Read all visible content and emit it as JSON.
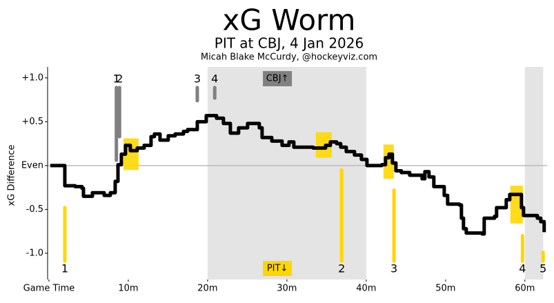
{
  "chart_data": {
    "type": "worm",
    "title": "xG Worm",
    "subtitle": "PIT at CBJ, 4 Jan 2026",
    "credit": "Micah Blake McCurdy, @hockeyviz.com",
    "y_label": "xG Difference",
    "xlim": [
      -0.17,
      62.8
    ],
    "ylim": [
      -1.3,
      1.125
    ],
    "xticks": [
      {
        "value": 0,
        "label": "Game Time"
      },
      {
        "value": 10,
        "label": "10m"
      },
      {
        "value": 20,
        "label": "20m"
      },
      {
        "value": 30,
        "label": "30m"
      },
      {
        "value": 40,
        "label": "40m"
      },
      {
        "value": 50,
        "label": "50m"
      },
      {
        "value": 60,
        "label": "60m"
      }
    ],
    "yticks": [
      {
        "value": 1,
        "label": "+1.0"
      },
      {
        "value": 0.5,
        "label": "+0.5"
      },
      {
        "value": 0,
        "label": "Even"
      },
      {
        "value": -0.5,
        "label": "-0.5"
      },
      {
        "value": -1,
        "label": "-1.0"
      }
    ],
    "step": true,
    "color": "#000000",
    "shaded_spans": [
      [
        20,
        40
      ],
      [
        60,
        62.3
      ]
    ],
    "x": [
      0.17,
      1.57,
      1.83,
      2.0,
      3.3,
      4.17,
      4.35,
      5.3,
      5.48,
      6.35,
      6.96,
      7.74,
      8.09,
      8.35,
      8.7,
      9.13,
      9.65,
      10.26,
      11.13,
      12.0,
      12.87,
      13.3,
      14.0,
      15.04,
      15.91,
      16.96,
      17.48,
      18.7,
      19.57,
      19.83,
      21.13,
      22.0,
      22.87,
      23.91,
      25.04,
      26.52,
      26.87,
      28.09,
      29.39,
      30.26,
      30.87,
      33.3,
      34.35,
      34.87,
      35.48,
      36.26,
      36.78,
      37.48,
      38.52,
      39.39,
      40.09,
      41.96,
      42.43,
      42.87,
      43.3,
      43.74,
      44.43,
      45.48,
      47.04,
      47.39,
      47.91,
      48.52,
      49.83,
      50.26,
      51.74,
      52.0,
      52.26,
      52.61,
      54.61,
      54.87,
      56.17,
      56.43,
      57.22,
      57.65,
      58.09,
      58.96,
      59.57,
      59.83,
      61.57,
      62.0,
      62.43
    ],
    "values": [
      0,
      0,
      0,
      -0.23,
      -0.24,
      -0.26,
      -0.35,
      -0.35,
      -0.31,
      -0.31,
      -0.34,
      -0.31,
      -0.31,
      -0.18,
      0.01,
      0.13,
      0.23,
      0.17,
      0.2,
      0.23,
      0.33,
      0.36,
      0.29,
      0.34,
      0.36,
      0.39,
      0.41,
      0.5,
      0.5,
      0.57,
      0.54,
      0.48,
      0.37,
      0.43,
      0.48,
      0.43,
      0.32,
      0.28,
      0.23,
      0.27,
      0.21,
      0.2,
      0.2,
      0.23,
      0.27,
      0.25,
      0.21,
      0.16,
      0.12,
      0.07,
      0,
      0.01,
      0.09,
      0.13,
      0.03,
      -0.06,
      -0.08,
      -0.11,
      -0.15,
      -0.07,
      -0.13,
      -0.24,
      -0.34,
      -0.44,
      -0.45,
      -0.6,
      -0.72,
      -0.77,
      -0.78,
      -0.6,
      -0.58,
      -0.48,
      -0.48,
      -0.39,
      -0.33,
      -0.33,
      -0.48,
      -0.57,
      -0.6,
      -0.64,
      -0.76
    ],
    "highlight_color": "#ffd700",
    "highlights": [
      {
        "x": [
          9.39,
          11.3
        ],
        "y": [
          -0.05,
          0.31
        ]
      },
      {
        "x": [
          33.65,
          35.65
        ],
        "y": [
          0.09,
          0.38
        ]
      },
      {
        "x": [
          42.17,
          43.48
        ],
        "y": [
          -0.15,
          0.24
        ]
      },
      {
        "x": [
          58.17,
          59.74
        ],
        "y": [
          -0.66,
          -0.23
        ]
      }
    ],
    "cbj_goals": {
      "color": "#808080",
      "labels": [
        "1",
        "2",
        "3",
        "4"
      ],
      "x": [
        8.5,
        8.9,
        18.7,
        20.9
      ],
      "from": [
        0.89,
        0.89,
        0.89,
        0.89
      ],
      "to": [
        0.06,
        0.33,
        0.74,
        0.77
      ]
    },
    "pit_goals": {
      "color": "#ffd700",
      "labels": [
        "1",
        "2",
        "3",
        "4",
        "5"
      ],
      "x": [
        2.0,
        36.9,
        43.5,
        59.7,
        62.3
      ],
      "from": [
        -1.09,
        -1.09,
        -1.09,
        -1.09,
        -1.09
      ],
      "to": [
        -0.48,
        -0.05,
        -0.28,
        -0.8,
        -0.99
      ]
    },
    "cbj_tag": "CBJ↑",
    "pit_tag": "PIT↓"
  }
}
